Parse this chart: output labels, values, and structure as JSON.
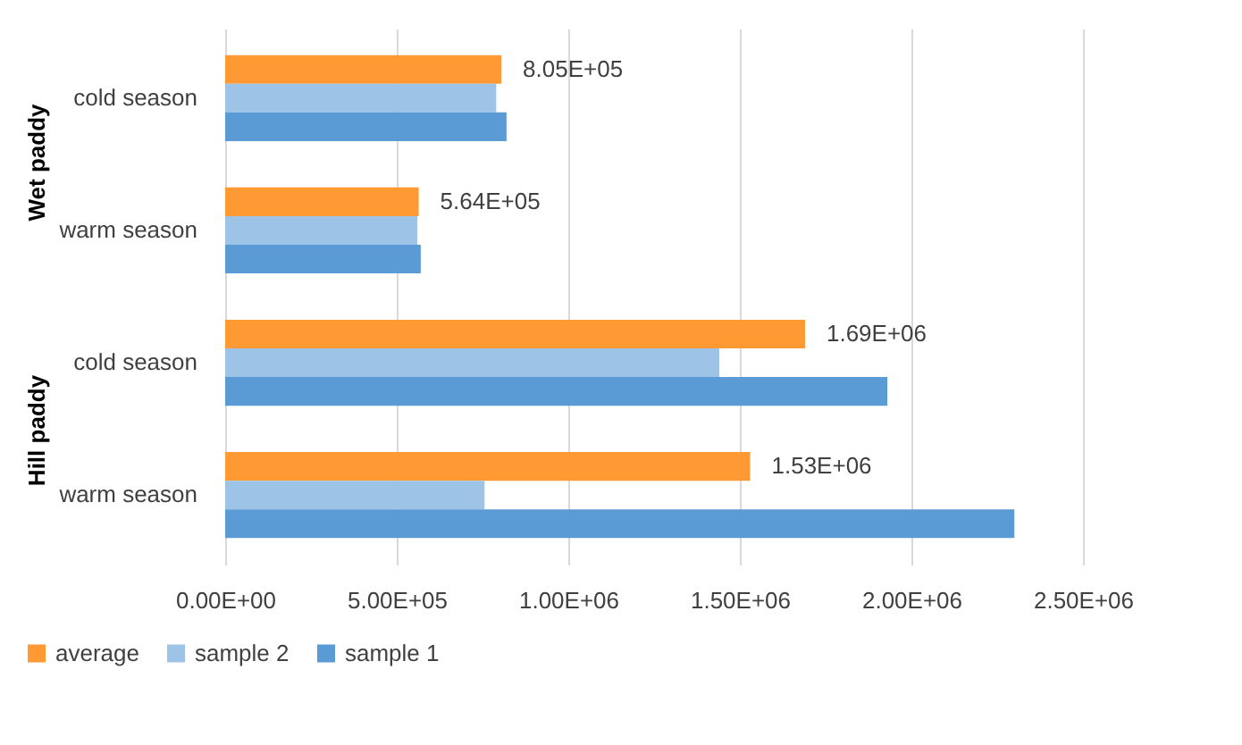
{
  "chart_data": {
    "type": "bar",
    "orientation": "horizontal",
    "categories": [
      "cold season",
      "warm season",
      "cold season",
      "warm season"
    ],
    "annotations": [
      "Wet paddy",
      "Hill paddy"
    ],
    "series": [
      {
        "name": "average",
        "color": "#ff9933",
        "values": [
          805000,
          564000,
          1690000,
          1530000
        ],
        "value_labels": [
          "8.05E+05",
          "5.64E+05",
          "1.69E+06",
          "1.53E+06"
        ]
      },
      {
        "name": "sample 2",
        "color": "#9dc3e6",
        "values": [
          790000,
          560000,
          1440000,
          756000
        ]
      },
      {
        "name": "sample 1",
        "color": "#5b9bd5",
        "values": [
          820000,
          570000,
          1930000,
          2300000
        ]
      }
    ],
    "xlim": [
      0,
      2500000
    ],
    "xticks": [
      {
        "value": 0,
        "label": "0.00E+00"
      },
      {
        "value": 500000,
        "label": "5.00E+05"
      },
      {
        "value": 1000000,
        "label": "1.00E+06"
      },
      {
        "value": 1500000,
        "label": "1.50E+06"
      },
      {
        "value": 2000000,
        "label": "2.00E+06"
      },
      {
        "value": 2500000,
        "label": "2.50E+06"
      }
    ],
    "grid": "x",
    "legend": "bottom"
  }
}
